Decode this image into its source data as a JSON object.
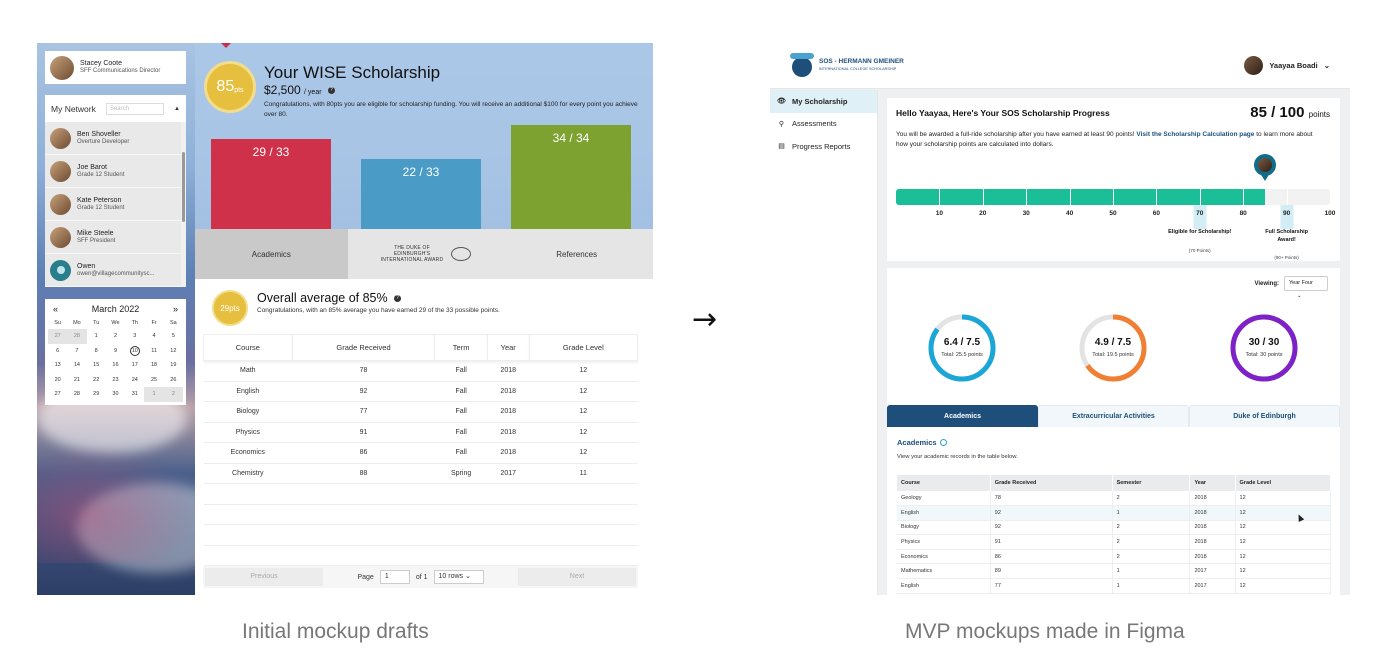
{
  "left_mockup": {
    "profile": {
      "name": "Stacey Coote",
      "role": "SFF Communications Director"
    },
    "network": {
      "title": "My Network",
      "search_placeholder": "Search",
      "people": [
        {
          "name": "Ben Shoveller",
          "role": "Overture Developer"
        },
        {
          "name": "Joe Barot",
          "role": "Grade 12 Student"
        },
        {
          "name": "Kate Peterson",
          "role": "Grade 12 Student"
        },
        {
          "name": "Mike Steele",
          "role": "SFF President"
        },
        {
          "name": "Owen",
          "role": "owen@villagecommunitysc..."
        }
      ]
    },
    "calendar": {
      "prev": "«",
      "next": "»",
      "month": "March 2022",
      "weekdays": [
        "Su",
        "Mo",
        "Tu",
        "We",
        "Th",
        "Fr",
        "Sa"
      ],
      "weeks": [
        [
          "27",
          "28",
          "1",
          "2",
          "3",
          "4",
          "5"
        ],
        [
          "6",
          "7",
          "8",
          "9",
          "10",
          "11",
          "12"
        ],
        [
          "13",
          "14",
          "15",
          "16",
          "17",
          "18",
          "19"
        ],
        [
          "20",
          "21",
          "22",
          "23",
          "24",
          "25",
          "26"
        ],
        [
          "27",
          "28",
          "29",
          "30",
          "31",
          "1",
          "2"
        ]
      ],
      "today": "10"
    },
    "scholarship": {
      "points": "85",
      "points_unit": "pts",
      "title": "Your WISE Scholarship",
      "amount": "$2,500",
      "amount_unit": "/ year",
      "description": "Congratulations, with 80pts you are eligible for scholarship funding. You will receive an additional $100 for every point you achieve over 80.",
      "bars": [
        {
          "label": "29 / 33",
          "value": 29,
          "max": 33,
          "color": "#d0314a"
        },
        {
          "label": "22 / 33",
          "value": 22,
          "max": 33,
          "color": "#4a9cc7"
        },
        {
          "label": "34 / 34",
          "value": 34,
          "max": 34,
          "color": "#7da230"
        }
      ],
      "tabs": [
        "Academics",
        "References"
      ],
      "doe_logo_text": "THE DUKE OF EDINBURGH'S INTERNATIONAL AWARD"
    },
    "academics": {
      "badge": "29pts",
      "title": "Overall average of 85%",
      "subtitle": "Congratulations, with an 85% average you have earned 29 of the 33 possible points.",
      "columns": [
        "Course",
        "Grade Received",
        "Term",
        "Year",
        "Grade Level"
      ],
      "rows": [
        [
          "Math",
          "78",
          "Fall",
          "2018",
          "12"
        ],
        [
          "English",
          "92",
          "Fall",
          "2018",
          "12"
        ],
        [
          "Biology",
          "77",
          "Fall",
          "2018",
          "12"
        ],
        [
          "Physics",
          "91",
          "Fall",
          "2018",
          "12"
        ],
        [
          "Economics",
          "86",
          "Fall",
          "2018",
          "12"
        ],
        [
          "Chemistry",
          "88",
          "Spring",
          "2017",
          "11"
        ]
      ],
      "pager": {
        "previous": "Previous",
        "page_label": "Page",
        "page": "1",
        "of_label": "of 1",
        "rows": "10 rows",
        "next": "Next"
      }
    }
  },
  "arrow": "→",
  "captions": {
    "left": "Initial mockup drafts",
    "right": "MVP mockups made in Figma"
  },
  "right_mockup": {
    "logo": {
      "title": "SOS - HERMANN GMEINER",
      "subtitle": "INTERNATIONAL COLLEGE SCHOLARSHIP"
    },
    "user": {
      "name": "Yaayaa Boadi",
      "caret": "⌄"
    },
    "nav": [
      {
        "label": "My Scholarship",
        "icon": "eye-icon",
        "glyph": "👁"
      },
      {
        "label": "Assessments",
        "icon": "pin-icon",
        "glyph": "⚲"
      },
      {
        "label": "Progress Reports",
        "icon": "report-icon",
        "glyph": "▤"
      }
    ],
    "progress": {
      "title": "Hello Yaayaa, Here's Your SOS Scholarship Progress",
      "score": "85 / 100",
      "score_unit": "points",
      "value": 85,
      "max": 100,
      "desc_before": "You will be awarded a full-ride scholarship after you have earned at least 90 points! ",
      "desc_link": "Visit the Scholarship Calculation page",
      "desc_after": " to learn more about how your scholarship points are calculated into dollars.",
      "ticks": [
        "10",
        "20",
        "30",
        "40",
        "50",
        "60",
        "70",
        "80",
        "90",
        "100"
      ],
      "milestones": [
        {
          "at": 70,
          "title": "Eligible for Scholarship!",
          "sub": "(70 Points)"
        },
        {
          "at": 90,
          "title": "Full Scholarship Award!",
          "sub": "(90+ Points)"
        }
      ]
    },
    "summary": {
      "viewing_label": "Viewing:",
      "viewing_value": "Year Four",
      "rings": [
        {
          "value": "6.4 / 7.5",
          "total": "Total: 25.5 points",
          "fraction": 0.853,
          "color": "#1aa6d6"
        },
        {
          "value": "4.9 / 7.5",
          "total": "Total: 19.5 points",
          "fraction": 0.653,
          "color": "#f07f33"
        },
        {
          "value": "30 / 30",
          "total": "Total: 30 points",
          "fraction": 1.0,
          "color": "#7e22c8"
        }
      ],
      "tabs": [
        "Academics",
        "Extracurricular Activities",
        "Duke of Edinburgh"
      ],
      "section_title": "Academics",
      "section_desc": "View your academic records in the table below.",
      "columns": [
        "Course",
        "Grade Received",
        "Semester",
        "Year",
        "Grade Level"
      ],
      "rows": [
        [
          "Geology",
          "78",
          "2",
          "2018",
          "12"
        ],
        [
          "English",
          "92",
          "1",
          "2018",
          "12"
        ],
        [
          "Biology",
          "92",
          "2",
          "2018",
          "12"
        ],
        [
          "Physics",
          "91",
          "2",
          "2018",
          "12"
        ],
        [
          "Economics",
          "86",
          "2",
          "2018",
          "12"
        ],
        [
          "Mathematics",
          "89",
          "1",
          "2017",
          "12"
        ],
        [
          "English",
          "77",
          "1",
          "2017",
          "12"
        ]
      ]
    }
  }
}
